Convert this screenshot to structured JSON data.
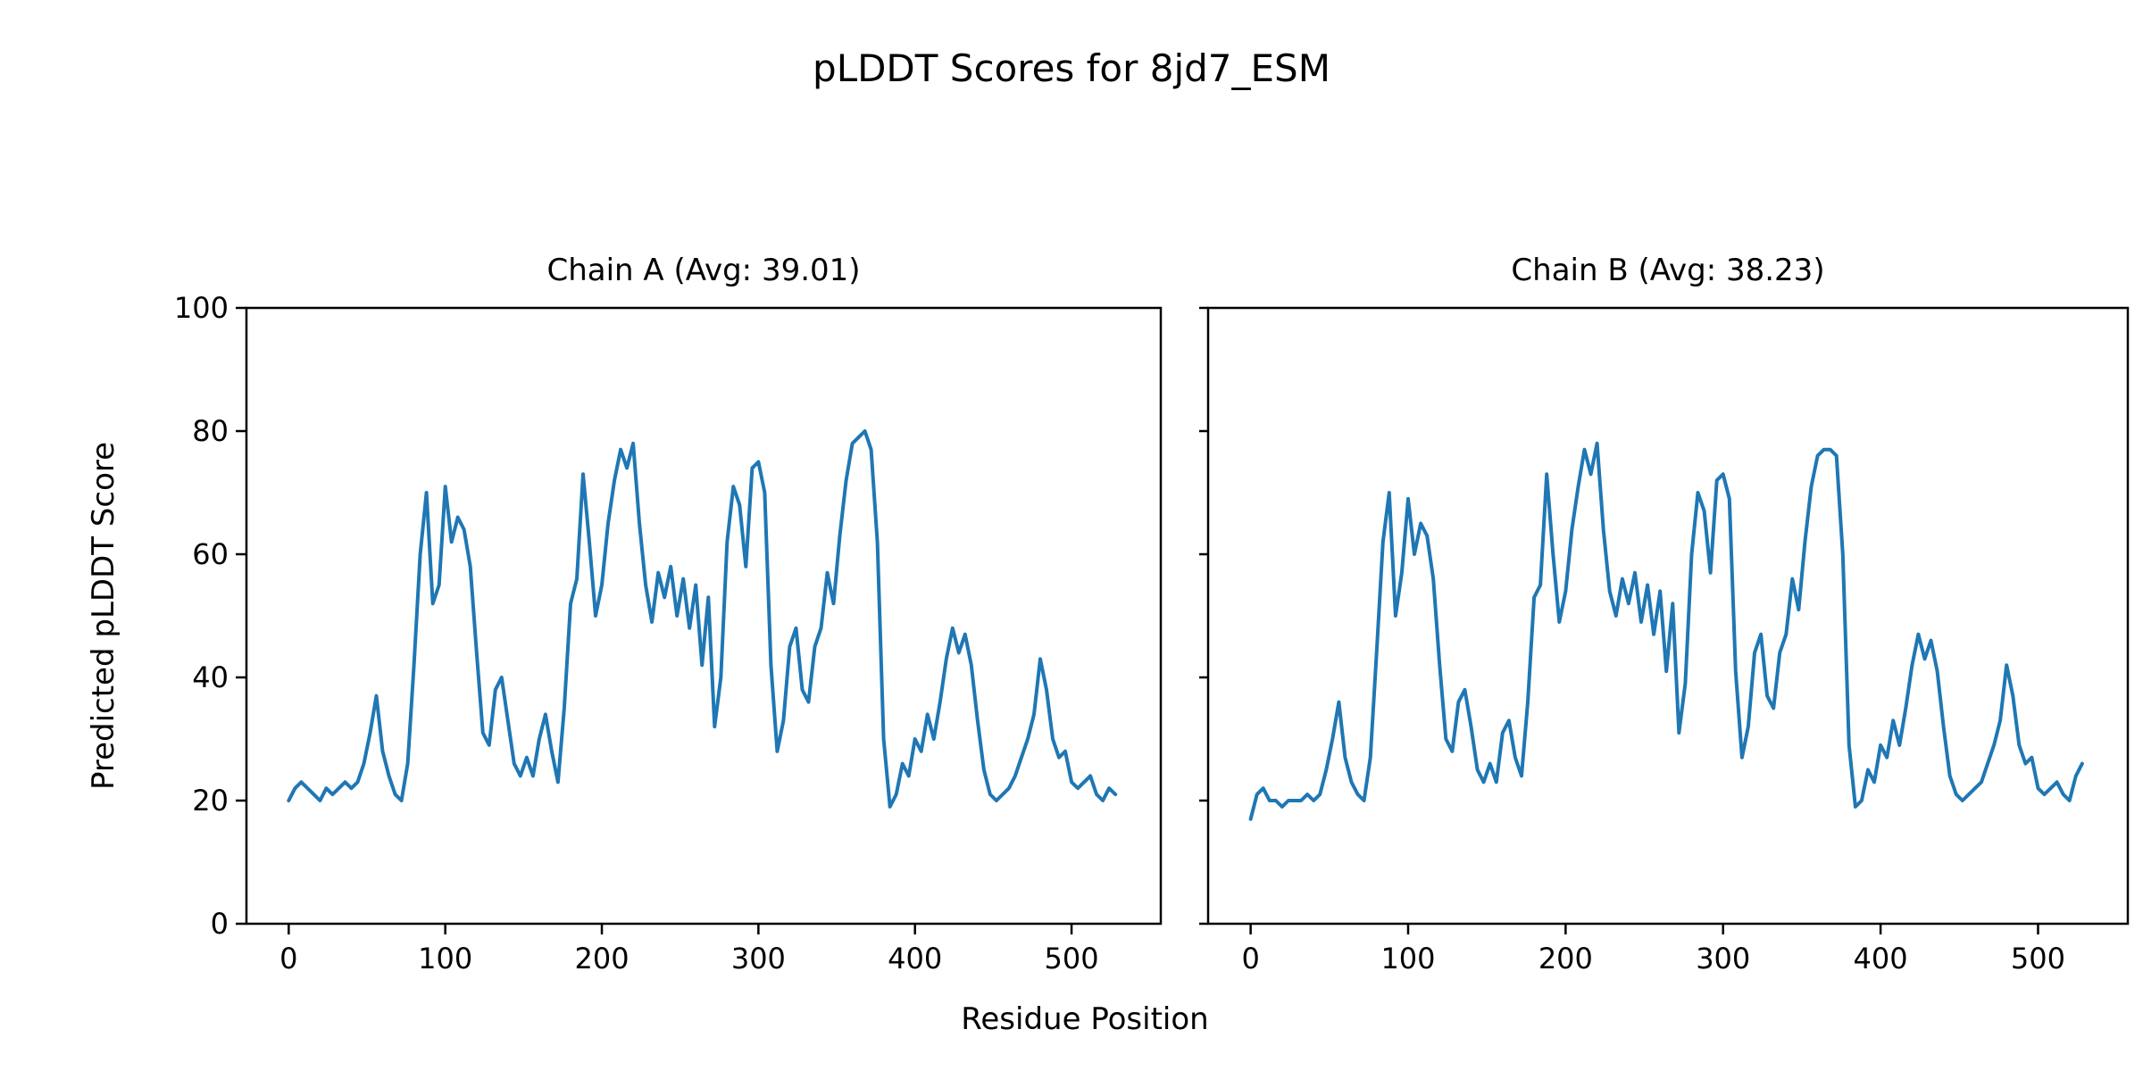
{
  "figure": {
    "title": "pLDDT Scores for 8jd7_ESM",
    "xlabel": "Residue Position",
    "ylabel": "Predicted pLDDT Score",
    "background": "#ffffff",
    "line_color": "#1f77b4",
    "axis_color": "#000000"
  },
  "chart_data": [
    {
      "type": "line",
      "title": "Chain A (Avg: 39.01)",
      "xlabel": "Residue Position",
      "ylabel": "Predicted pLDDT Score",
      "xlim": [
        -27,
        557
      ],
      "ylim": [
        0,
        100
      ],
      "xticks": [
        0,
        100,
        200,
        300,
        400,
        500
      ],
      "yticks": [
        0,
        20,
        40,
        60,
        80,
        100
      ],
      "grid": false,
      "legend": false,
      "show_ytick_labels": true,
      "x": [
        0,
        4,
        8,
        12,
        16,
        20,
        24,
        28,
        32,
        36,
        40,
        44,
        48,
        52,
        56,
        60,
        64,
        68,
        72,
        76,
        80,
        84,
        88,
        92,
        96,
        100,
        104,
        108,
        112,
        116,
        120,
        124,
        128,
        132,
        136,
        140,
        144,
        148,
        152,
        156,
        160,
        164,
        168,
        172,
        176,
        180,
        184,
        188,
        192,
        196,
        200,
        204,
        208,
        212,
        216,
        220,
        224,
        228,
        232,
        236,
        240,
        244,
        248,
        252,
        256,
        260,
        264,
        268,
        272,
        276,
        280,
        284,
        288,
        292,
        296,
        300,
        304,
        308,
        312,
        316,
        320,
        324,
        328,
        332,
        336,
        340,
        344,
        348,
        352,
        356,
        360,
        364,
        368,
        372,
        376,
        380,
        384,
        388,
        392,
        396,
        400,
        404,
        408,
        412,
        416,
        420,
        424,
        428,
        432,
        436,
        440,
        444,
        448,
        452,
        456,
        460,
        464,
        468,
        472,
        476,
        480,
        484,
        488,
        492,
        496,
        500,
        504,
        508,
        512,
        516,
        520,
        524,
        528
      ],
      "series": [
        {
          "name": "pLDDT",
          "color": "#1f77b4",
          "values": [
            20,
            22,
            23,
            22,
            21,
            20,
            22,
            21,
            22,
            23,
            22,
            23,
            26,
            31,
            37,
            28,
            24,
            21,
            20,
            26,
            42,
            60,
            70,
            52,
            55,
            71,
            62,
            66,
            64,
            58,
            44,
            31,
            29,
            38,
            40,
            33,
            26,
            24,
            27,
            24,
            30,
            34,
            28,
            23,
            35,
            52,
            56,
            73,
            62,
            50,
            55,
            65,
            72,
            77,
            74,
            78,
            65,
            55,
            49,
            57,
            53,
            58,
            50,
            56,
            48,
            55,
            42,
            53,
            32,
            40,
            62,
            71,
            68,
            58,
            74,
            75,
            70,
            42,
            28,
            33,
            45,
            48,
            38,
            36,
            45,
            48,
            57,
            52,
            63,
            72,
            78,
            79,
            80,
            77,
            62,
            30,
            19,
            21,
            26,
            24,
            30,
            28,
            34,
            30,
            36,
            43,
            48,
            44,
            47,
            42,
            33,
            25,
            21,
            20,
            21,
            22,
            24,
            27,
            30,
            34,
            43,
            38,
            30,
            27,
            28,
            23,
            22,
            23,
            24,
            21,
            20,
            22,
            21
          ]
        }
      ]
    },
    {
      "type": "line",
      "title": "Chain B (Avg: 38.23)",
      "xlabel": "Residue Position",
      "ylabel": "Predicted pLDDT Score",
      "xlim": [
        -27,
        557
      ],
      "ylim": [
        0,
        100
      ],
      "xticks": [
        0,
        100,
        200,
        300,
        400,
        500
      ],
      "yticks": [
        0,
        20,
        40,
        60,
        80,
        100
      ],
      "grid": false,
      "legend": false,
      "show_ytick_labels": false,
      "x": [
        0,
        4,
        8,
        12,
        16,
        20,
        24,
        28,
        32,
        36,
        40,
        44,
        48,
        52,
        56,
        60,
        64,
        68,
        72,
        76,
        80,
        84,
        88,
        92,
        96,
        100,
        104,
        108,
        112,
        116,
        120,
        124,
        128,
        132,
        136,
        140,
        144,
        148,
        152,
        156,
        160,
        164,
        168,
        172,
        176,
        180,
        184,
        188,
        192,
        196,
        200,
        204,
        208,
        212,
        216,
        220,
        224,
        228,
        232,
        236,
        240,
        244,
        248,
        252,
        256,
        260,
        264,
        268,
        272,
        276,
        280,
        284,
        288,
        292,
        296,
        300,
        304,
        308,
        312,
        316,
        320,
        324,
        328,
        332,
        336,
        340,
        344,
        348,
        352,
        356,
        360,
        364,
        368,
        372,
        376,
        380,
        384,
        388,
        392,
        396,
        400,
        404,
        408,
        412,
        416,
        420,
        424,
        428,
        432,
        436,
        440,
        444,
        448,
        452,
        456,
        460,
        464,
        468,
        472,
        476,
        480,
        484,
        488,
        492,
        496,
        500,
        504,
        508,
        512,
        516,
        520,
        524,
        528
      ],
      "series": [
        {
          "name": "pLDDT",
          "color": "#1f77b4",
          "values": [
            17,
            21,
            22,
            20,
            20,
            19,
            20,
            20,
            20,
            21,
            20,
            21,
            25,
            30,
            36,
            27,
            23,
            21,
            20,
            27,
            44,
            62,
            70,
            50,
            57,
            69,
            60,
            65,
            63,
            56,
            42,
            30,
            28,
            36,
            38,
            32,
            25,
            23,
            26,
            23,
            31,
            33,
            27,
            24,
            36,
            53,
            55,
            73,
            60,
            49,
            54,
            64,
            71,
            77,
            73,
            78,
            64,
            54,
            50,
            56,
            52,
            57,
            49,
            55,
            47,
            54,
            41,
            52,
            31,
            39,
            60,
            70,
            67,
            57,
            72,
            73,
            69,
            41,
            27,
            32,
            44,
            47,
            37,
            35,
            44,
            47,
            56,
            51,
            62,
            71,
            76,
            77,
            77,
            76,
            60,
            29,
            19,
            20,
            25,
            23,
            29,
            27,
            33,
            29,
            35,
            42,
            47,
            43,
            46,
            41,
            32,
            24,
            21,
            20,
            21,
            22,
            23,
            26,
            29,
            33,
            42,
            37,
            29,
            26,
            27,
            22,
            21,
            22,
            23,
            21,
            20,
            24,
            26
          ]
        }
      ]
    }
  ]
}
